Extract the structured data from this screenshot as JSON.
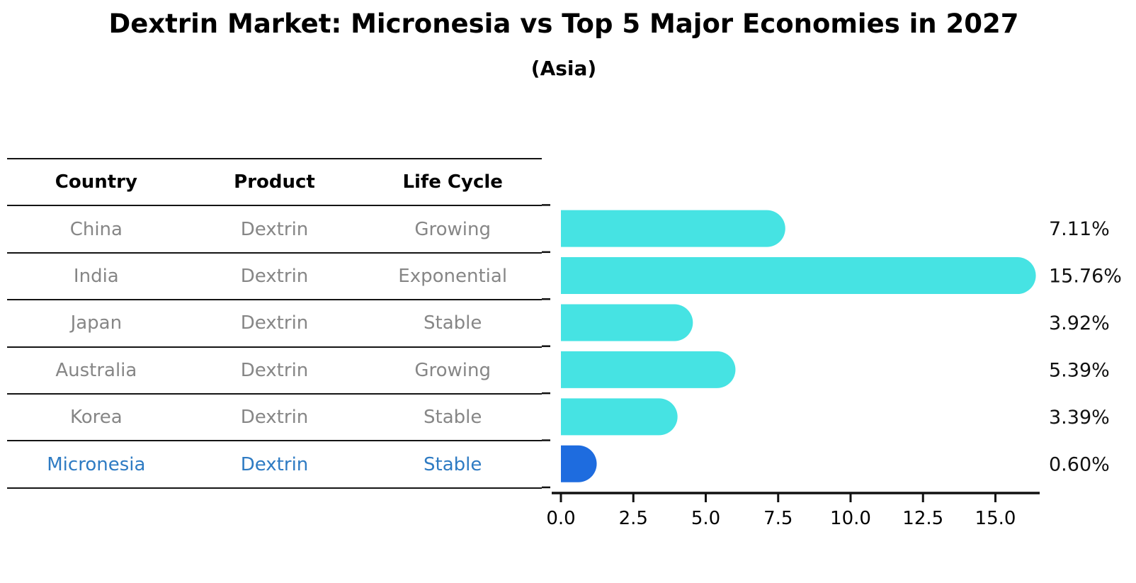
{
  "title": "Dextrin Market: Micronesia vs Top 5 Major Economies in 2027",
  "subtitle": "(Asia)",
  "table": {
    "headers": [
      "Country",
      "Product",
      "Life Cycle"
    ],
    "rows": [
      {
        "country": "China",
        "product": "Dextrin",
        "life_cycle": "Growing",
        "highlighted": false
      },
      {
        "country": "India",
        "product": "Dextrin",
        "life_cycle": "Exponential",
        "highlighted": false
      },
      {
        "country": "Japan",
        "product": "Dextrin",
        "life_cycle": "Stable",
        "highlighted": false
      },
      {
        "country": "Australia",
        "product": "Dextrin",
        "life_cycle": "Growing",
        "highlighted": false
      },
      {
        "country": "Korea",
        "product": "Dextrin",
        "life_cycle": "Stable",
        "highlighted": false
      },
      {
        "country": "Micronesia",
        "product": "Dextrin",
        "life_cycle": "Stable",
        "highlighted": true
      }
    ]
  },
  "chart_data": {
    "type": "bar",
    "orientation": "horizontal",
    "title": "Dextrin Market: Micronesia vs Top 5 Major Economies in 2027",
    "subtitle": "(Asia)",
    "categories": [
      "China",
      "India",
      "Japan",
      "Australia",
      "Korea",
      "Micronesia"
    ],
    "values": [
      7.11,
      15.76,
      3.92,
      5.39,
      3.39,
      0.6
    ],
    "value_labels": [
      "7.11%",
      "15.76%",
      "3.92%",
      "5.39%",
      "3.39%",
      "0.60%"
    ],
    "x_tick_labels": [
      "0.0",
      "2.5",
      "5.0",
      "7.5",
      "10.0",
      "12.5",
      "15.0"
    ],
    "x_tick_values": [
      0,
      2.5,
      5,
      7.5,
      10,
      12.5,
      15
    ],
    "xlim": [
      0,
      16.6
    ],
    "grid": false,
    "legend": false,
    "bar_color": "#46E3E3",
    "highlight_color": "#1E6CDF",
    "highlight_index": 5
  },
  "colors": {
    "background": "#FFFFFF",
    "title_text": "#000000",
    "table_line": "#141414",
    "table_text_muted": "#868686",
    "highlight_text": "#2E7BC3",
    "axis": "#111111",
    "value_label_text": "#111111"
  }
}
